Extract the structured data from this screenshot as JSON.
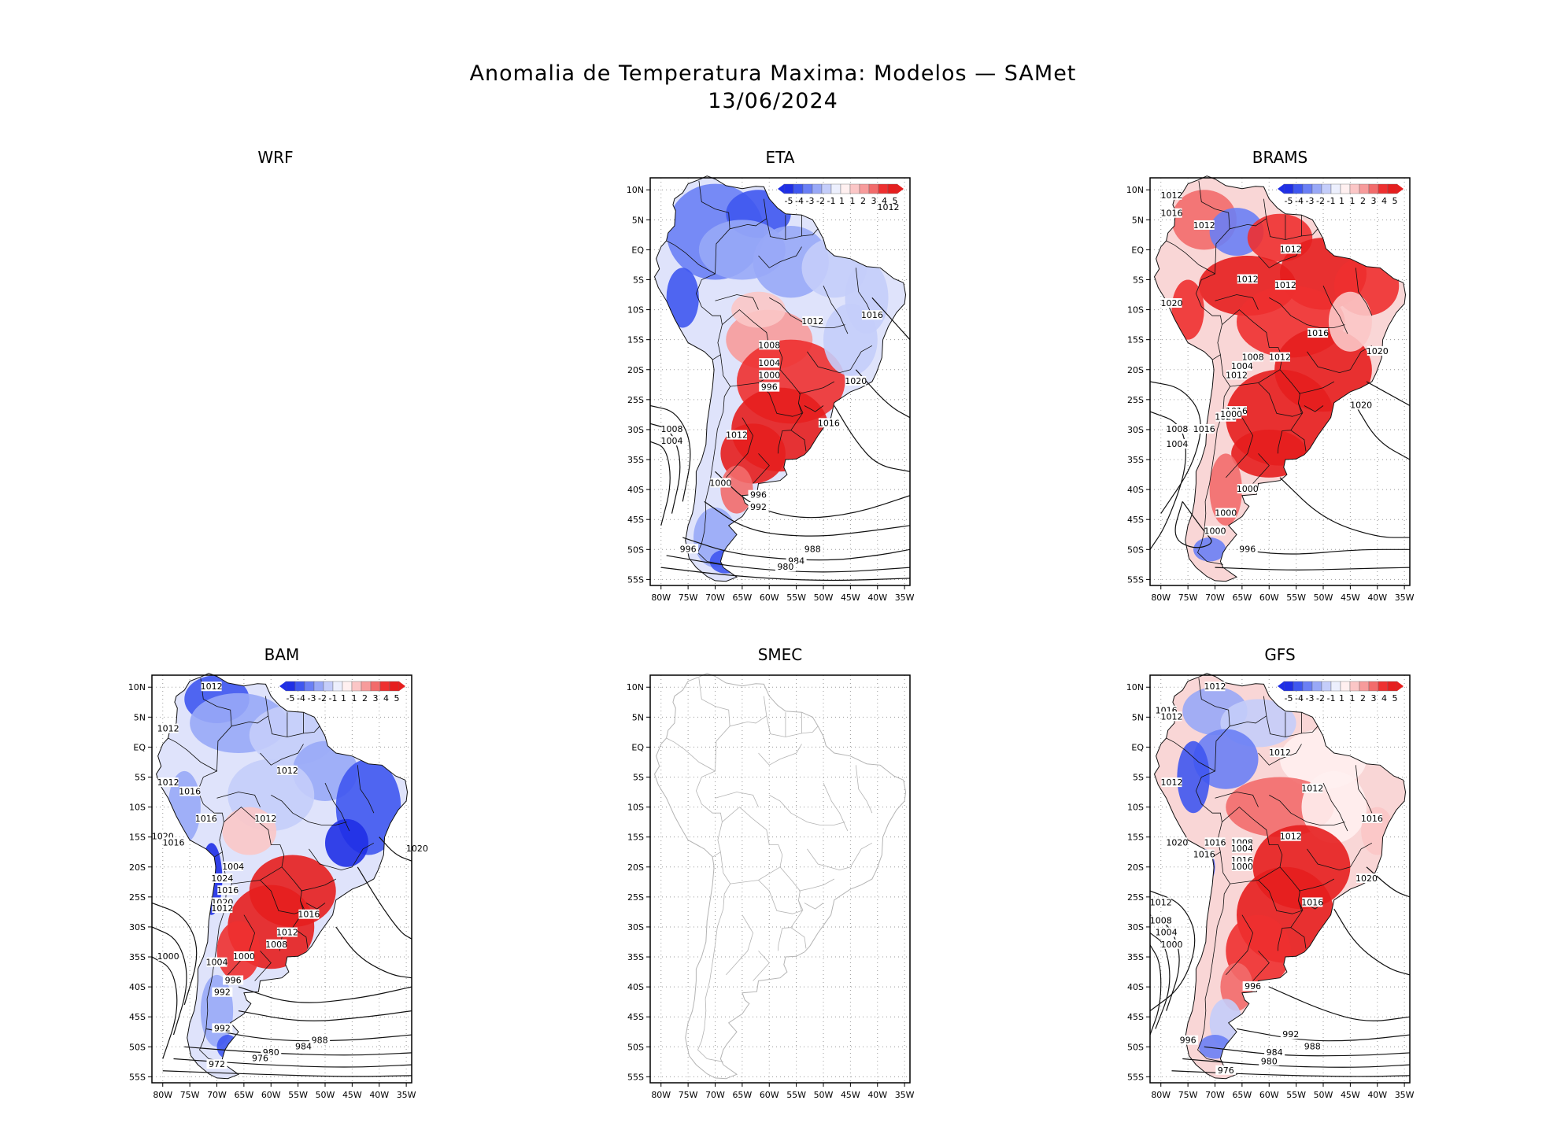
{
  "title": {
    "line1": "Anomalia de Temperatura Maxima: Modelos — SAMet",
    "line2": "13/06/2024"
  },
  "axes": {
    "lat_labels": [
      "10N",
      "5N",
      "EQ",
      "5S",
      "10S",
      "15S",
      "20S",
      "25S",
      "30S",
      "35S",
      "40S",
      "45S",
      "50S",
      "55S"
    ],
    "lon_labels": [
      "80W",
      "75W",
      "70W",
      "65W",
      "60W",
      "55W",
      "50W",
      "45W",
      "40W",
      "35W"
    ]
  },
  "colorbar": {
    "labels": [
      "-5",
      "-4",
      "-3",
      "-2",
      "-1",
      "1",
      "1",
      "2",
      "3",
      "4",
      "5"
    ],
    "colors": [
      "#1f2fe6",
      "#3f57f0",
      "#6a7ff5",
      "#98a8f7",
      "#c4cdfa",
      "#eceffd",
      "#fff0f0",
      "#fbc6c6",
      "#f79b9b",
      "#f26b6b",
      "#ee3030",
      "#e61e1e"
    ]
  },
  "panels": [
    {
      "id": "wrf",
      "title": "WRF",
      "has_map": false,
      "col": 0,
      "row": 0
    },
    {
      "id": "eta",
      "title": "ETA",
      "has_map": true,
      "col": 1,
      "row": 0,
      "scheme": "cold-north",
      "contours": [
        "1012",
        "1016",
        "1012",
        "1008",
        "1004",
        "1000",
        "996",
        "1020",
        "1016",
        "1008",
        "1004",
        "1012",
        "1000",
        "996",
        "992",
        "996",
        "988",
        "984",
        "980"
      ]
    },
    {
      "id": "brams",
      "title": "BRAMS",
      "has_map": true,
      "col": 2,
      "row": 0,
      "scheme": "warm",
      "contours": [
        "1012",
        "1016",
        "1012",
        "1012",
        "1012",
        "1012",
        "1020",
        "1016",
        "1020",
        "1008",
        "1004",
        "1012",
        "1012",
        "1016",
        "1020",
        "1000",
        "1020",
        "1016",
        "1008",
        "1004",
        "1000",
        "1000",
        "1000",
        "996"
      ]
    },
    {
      "id": "bam",
      "title": "BAM",
      "has_map": true,
      "col": 0,
      "row": 1,
      "scheme": "cold-east",
      "contours": [
        "1012",
        "1012",
        "1012",
        "1012",
        "1016",
        "1016",
        "1020",
        "1016",
        "1012",
        "1020",
        "1004",
        "1024",
        "1016",
        "1020",
        "1012",
        "1016",
        "1012",
        "1008",
        "1000",
        "1004",
        "1000",
        "996",
        "992",
        "992",
        "988",
        "984",
        "980",
        "976",
        "972"
      ]
    },
    {
      "id": "smec",
      "title": "SMEC",
      "has_map": true,
      "col": 1,
      "row": 1,
      "scheme": "empty",
      "contours": []
    },
    {
      "id": "gfs",
      "title": "GFS",
      "has_map": true,
      "col": 2,
      "row": 1,
      "scheme": "warm-mixed",
      "contours": [
        "1012",
        "1016",
        "1012",
        "1012",
        "1012",
        "1012",
        "1016",
        "1020",
        "1016",
        "1008",
        "1004",
        "1016",
        "1012",
        "1016",
        "1000",
        "1020",
        "1016",
        "1012",
        "1008",
        "1004",
        "1000",
        "996",
        "992",
        "988",
        "984",
        "980",
        "976",
        "996"
      ]
    }
  ]
}
